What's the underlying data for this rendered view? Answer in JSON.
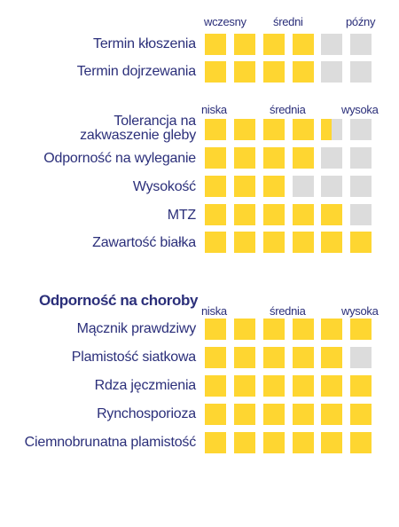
{
  "colors": {
    "filled": "#fed631",
    "empty": "#dcdcdc",
    "text": "#2b2f7a"
  },
  "timing_scale": {
    "low": "wczesny",
    "mid": "średni",
    "high": "późny"
  },
  "timing_rows": [
    {
      "label": "Termin kłoszenia",
      "value": 4
    },
    {
      "label": "Termin dojrzewania",
      "value": 4
    }
  ],
  "traits_scale": {
    "low": "niska",
    "mid": "średnia",
    "high": "wysoka"
  },
  "traits_rows": [
    {
      "label_line1": "Tolerancja na",
      "label_line2": "zakwaszenie gleby",
      "value": 4.5
    },
    {
      "label": "Odporność na wyleganie",
      "value": 4
    },
    {
      "label": "Wysokość",
      "value": 3
    },
    {
      "label": "MTZ",
      "value": 5
    },
    {
      "label": "Zawartość białka",
      "value": 6
    }
  ],
  "disease_section": {
    "title": "Odporność na choroby",
    "scale": {
      "low": "niska",
      "mid": "średnia",
      "high": "wysoka"
    },
    "rows": [
      {
        "label": "Mącznik prawdziwy",
        "value": 6
      },
      {
        "label": "Plamistość siatkowa",
        "value": 5
      },
      {
        "label": "Rdza jęczmienia",
        "value": 6
      },
      {
        "label": "Rynchosporioza",
        "value": 6
      },
      {
        "label": "Ciemnobrunatna plamistość",
        "value": 6
      }
    ]
  }
}
